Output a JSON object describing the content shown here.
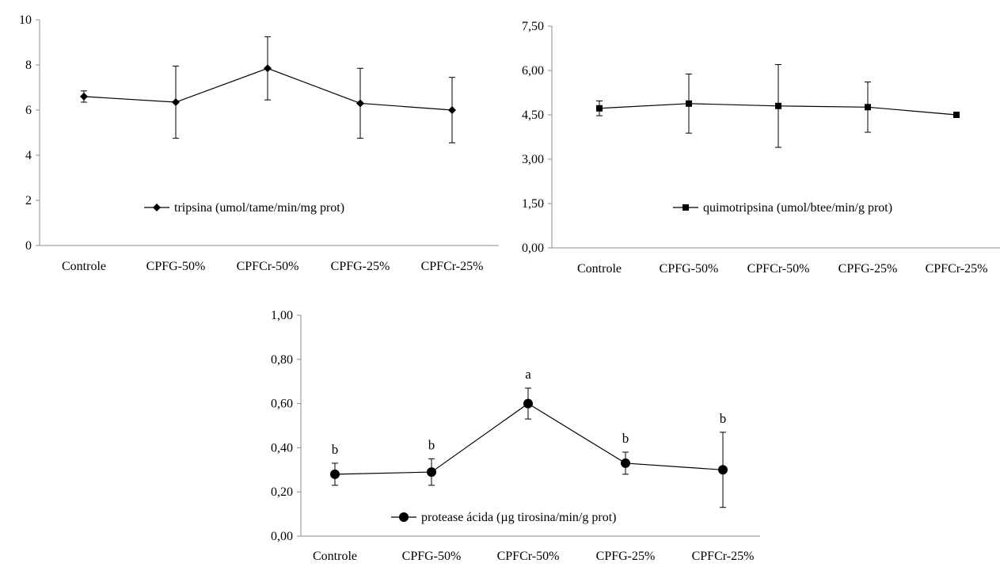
{
  "chart_data": [
    {
      "type": "line",
      "categories": [
        "Controle",
        "CPFG-50%",
        "CPFCr-50%",
        "CPFG-25%",
        "CPFCr-25%"
      ],
      "series": [
        {
          "name": "tripsina (umol/tame/min/mg prot)",
          "marker": "diamond",
          "values": [
            6.6,
            6.35,
            7.85,
            6.3,
            6.0
          ],
          "error": [
            0.25,
            1.6,
            1.4,
            1.55,
            1.45
          ]
        }
      ],
      "ylim": [
        0,
        10
      ],
      "yticks": [
        0,
        2,
        4,
        6,
        8,
        10
      ],
      "ytick_labels": [
        "0",
        "2",
        "4",
        "6",
        "8",
        "10"
      ],
      "legend": "inside-bottom-center",
      "grid": false
    },
    {
      "type": "line",
      "categories": [
        "Controle",
        "CPFG-50%",
        "CPFCr-50%",
        "CPFG-25%",
        "CPFCr-25%"
      ],
      "series": [
        {
          "name": "quimotripsina (umol/btee/min/g prot)",
          "marker": "square",
          "values": [
            4.72,
            4.88,
            4.8,
            4.76,
            4.5
          ],
          "error": [
            0.25,
            1.0,
            1.4,
            0.85,
            0.06
          ]
        }
      ],
      "ylim": [
        0,
        7.5
      ],
      "yticks": [
        0,
        1.5,
        3,
        4.5,
        6,
        7.5
      ],
      "ytick_labels": [
        "0,00",
        "1,50",
        "3,00",
        "4,50",
        "6,00",
        "7,50"
      ],
      "legend": "inside-bottom-center",
      "grid": false
    },
    {
      "type": "line",
      "categories": [
        "Controle",
        "CPFG-50%",
        "CPFCr-50%",
        "CPFG-25%",
        "CPFCr-25%"
      ],
      "series": [
        {
          "name": "protease ácida  (µg tirosina/min/g prot)",
          "marker": "circle",
          "values": [
            0.28,
            0.29,
            0.6,
            0.33,
            0.3
          ],
          "error": [
            0.05,
            0.06,
            0.07,
            0.05,
            0.17
          ]
        }
      ],
      "annotations": [
        "b",
        "b",
        "a",
        "b",
        "b"
      ],
      "ylim": [
        0,
        1
      ],
      "yticks": [
        0,
        0.2,
        0.4,
        0.6,
        0.8,
        1.0
      ],
      "ytick_labels": [
        "0,00",
        "0,20",
        "0,40",
        "0,60",
        "0,80",
        "1,00"
      ],
      "legend": "inside-bottom-center",
      "grid": false
    }
  ]
}
